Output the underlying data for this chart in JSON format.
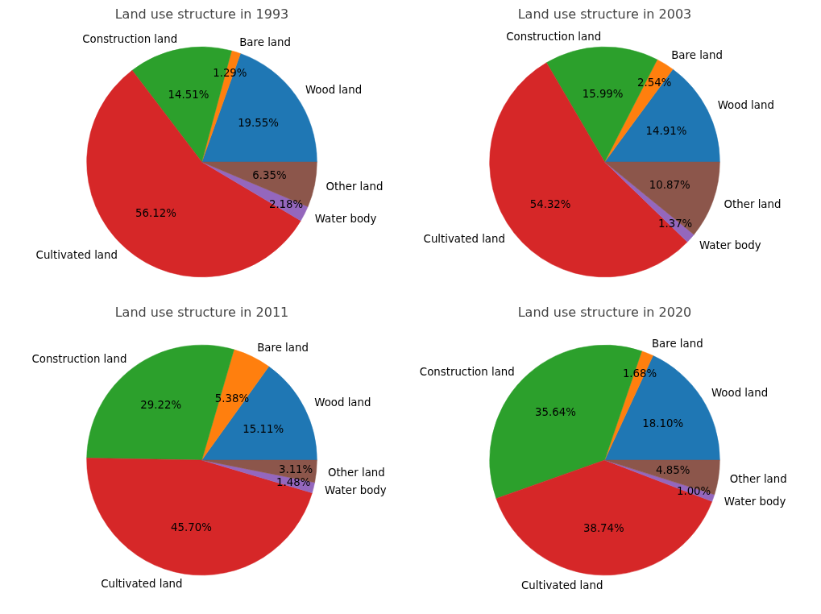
{
  "chart_data": [
    {
      "type": "pie",
      "title": "Land use structure in 1993",
      "categories": [
        "Wood land",
        "Bare land",
        "Construction land",
        "Cultivated land",
        "Water body",
        "Other land"
      ],
      "values": [
        19.55,
        1.29,
        14.51,
        56.12,
        2.18,
        6.35
      ],
      "value_labels": [
        "19.55%",
        "1.29%",
        "14.51%",
        "56.12%",
        "2.18%",
        "6.35%"
      ],
      "colors": [
        "#1f77b4",
        "#ff7f0e",
        "#2ca02c",
        "#d62728",
        "#9467bd",
        "#8c564b"
      ]
    },
    {
      "type": "pie",
      "title": "Land use structure in 2003",
      "categories": [
        "Wood land",
        "Bare land",
        "Construction land",
        "Cultivated land",
        "Water body",
        "Other land"
      ],
      "values": [
        14.91,
        2.54,
        15.99,
        54.32,
        1.37,
        10.87
      ],
      "value_labels": [
        "14.91%",
        "2.54%",
        "15.99%",
        "54.32%",
        "1.37%",
        "10.87%"
      ],
      "colors": [
        "#1f77b4",
        "#ff7f0e",
        "#2ca02c",
        "#d62728",
        "#9467bd",
        "#8c564b"
      ]
    },
    {
      "type": "pie",
      "title": "Land use structure in 2011",
      "categories": [
        "Wood land",
        "Bare land",
        "Construction land",
        "Cultivated land",
        "Water body",
        "Other land"
      ],
      "values": [
        15.11,
        5.38,
        29.22,
        45.7,
        1.48,
        3.11
      ],
      "value_labels": [
        "15.11%",
        "5.38%",
        "29.22%",
        "45.70%",
        "1.48%",
        "3.11%"
      ],
      "colors": [
        "#1f77b4",
        "#ff7f0e",
        "#2ca02c",
        "#d62728",
        "#9467bd",
        "#8c564b"
      ]
    },
    {
      "type": "pie",
      "title": "Land use structure in 2020",
      "categories": [
        "Wood land",
        "Bare land",
        "Construction land",
        "Cultivated land",
        "Water body",
        "Other land"
      ],
      "values": [
        18.1,
        1.68,
        35.64,
        38.74,
        1.0,
        4.85
      ],
      "value_labels": [
        "18.10%",
        "1.68%",
        "35.64%",
        "38.74%",
        "1.00%",
        "4.85%"
      ],
      "colors": [
        "#1f77b4",
        "#ff7f0e",
        "#2ca02c",
        "#d62728",
        "#9467bd",
        "#8c564b"
      ]
    }
  ]
}
